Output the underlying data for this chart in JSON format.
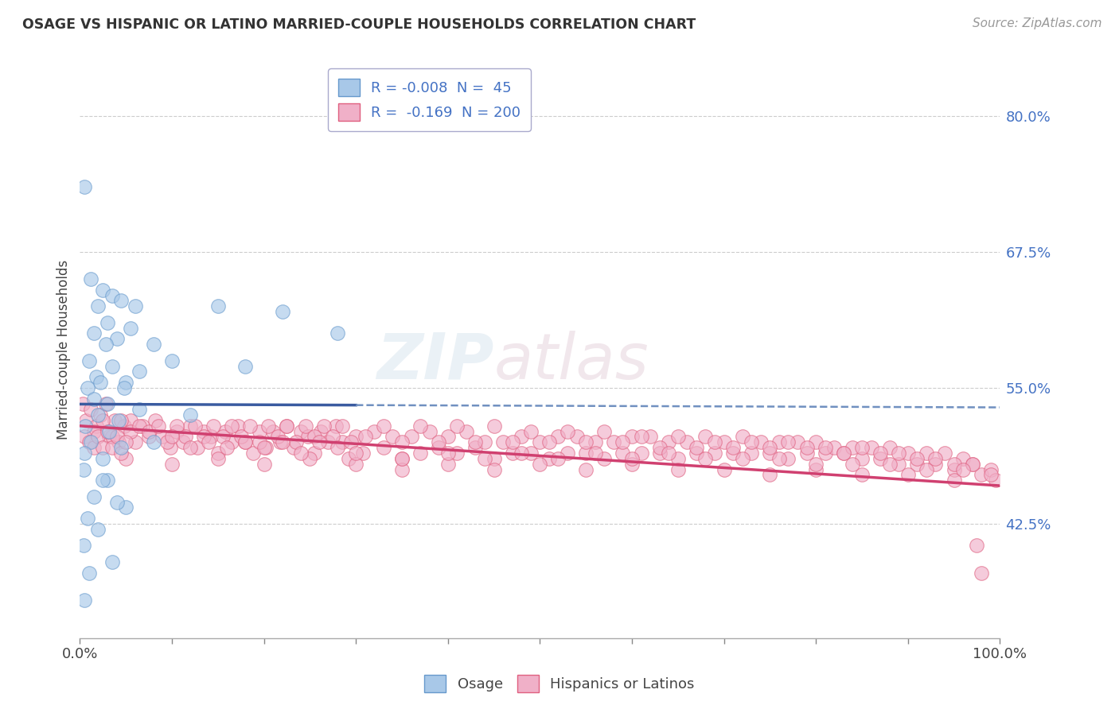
{
  "title": "OSAGE VS HISPANIC OR LATINO MARRIED-COUPLE HOUSEHOLDS CORRELATION CHART",
  "source": "Source: ZipAtlas.com",
  "ylabel": "Married-couple Households",
  "xlim": [
    0,
    100
  ],
  "ylim": [
    32,
    85
  ],
  "yticks": [
    42.5,
    55.0,
    67.5,
    80.0
  ],
  "xticks": [
    0,
    10,
    20,
    30,
    40,
    50,
    60,
    70,
    80,
    90,
    100
  ],
  "watermark_zip": "ZIP",
  "watermark_atlas": "atlas",
  "osage_color": "#a8c8e8",
  "osage_edge": "#6699cc",
  "hispanic_color": "#f0b0c8",
  "hispanic_edge": "#e06080",
  "blue_trend_color": "#3a5ba0",
  "pink_trend_color": "#d04070",
  "dashed_color": "#7090c0",
  "background_color": "#ffffff",
  "grid_color": "#c0c0c0",
  "right_label_color": "#4472c4",
  "blue_solid_end": 30,
  "blue_trend_start_y": 53.5,
  "blue_trend_end_y": 53.2,
  "pink_trend_start_y": 51.5,
  "pink_trend_end_y": 46.0,
  "osage_points": [
    [
      0.5,
      73.5
    ],
    [
      1.2,
      65.0
    ],
    [
      2.5,
      64.0
    ],
    [
      3.5,
      63.5
    ],
    [
      2.0,
      62.5
    ],
    [
      4.5,
      63.0
    ],
    [
      6.0,
      62.5
    ],
    [
      15.0,
      62.5
    ],
    [
      22.0,
      62.0
    ],
    [
      3.0,
      61.0
    ],
    [
      5.5,
      60.5
    ],
    [
      1.5,
      60.0
    ],
    [
      4.0,
      59.5
    ],
    [
      2.8,
      59.0
    ],
    [
      8.0,
      59.0
    ],
    [
      28.0,
      60.0
    ],
    [
      1.0,
      57.5
    ],
    [
      3.5,
      57.0
    ],
    [
      6.5,
      56.5
    ],
    [
      18.0,
      57.0
    ],
    [
      10.0,
      57.5
    ],
    [
      1.8,
      56.0
    ],
    [
      2.2,
      55.5
    ],
    [
      5.0,
      55.5
    ],
    [
      0.8,
      55.0
    ],
    [
      4.8,
      55.0
    ],
    [
      1.5,
      54.0
    ],
    [
      3.0,
      53.5
    ],
    [
      2.0,
      52.5
    ],
    [
      4.2,
      52.0
    ],
    [
      0.6,
      51.5
    ],
    [
      3.2,
      51.0
    ],
    [
      6.5,
      53.0
    ],
    [
      12.0,
      52.5
    ],
    [
      1.2,
      50.0
    ],
    [
      4.5,
      49.5
    ],
    [
      0.5,
      49.0
    ],
    [
      2.5,
      48.5
    ],
    [
      8.0,
      50.0
    ],
    [
      0.4,
      47.5
    ],
    [
      3.0,
      46.5
    ],
    [
      1.5,
      45.0
    ],
    [
      5.0,
      44.0
    ],
    [
      0.8,
      43.0
    ],
    [
      2.0,
      42.0
    ],
    [
      0.4,
      40.5
    ],
    [
      3.5,
      39.0
    ],
    [
      1.0,
      38.0
    ],
    [
      2.5,
      46.5
    ],
    [
      4.0,
      44.5
    ],
    [
      0.5,
      35.5
    ]
  ],
  "hispanic_points": [
    [
      0.3,
      53.5
    ],
    [
      0.7,
      52.0
    ],
    [
      1.2,
      53.0
    ],
    [
      1.8,
      51.5
    ],
    [
      2.2,
      52.5
    ],
    [
      2.8,
      53.5
    ],
    [
      3.2,
      50.5
    ],
    [
      3.8,
      52.0
    ],
    [
      4.2,
      50.0
    ],
    [
      4.8,
      51.5
    ],
    [
      5.5,
      52.0
    ],
    [
      6.0,
      50.0
    ],
    [
      6.8,
      51.5
    ],
    [
      7.5,
      50.5
    ],
    [
      8.2,
      52.0
    ],
    [
      9.0,
      50.5
    ],
    [
      9.8,
      49.5
    ],
    [
      10.5,
      51.0
    ],
    [
      11.2,
      50.0
    ],
    [
      12.0,
      51.5
    ],
    [
      12.8,
      49.5
    ],
    [
      13.5,
      51.0
    ],
    [
      14.2,
      50.5
    ],
    [
      15.0,
      49.0
    ],
    [
      15.8,
      51.0
    ],
    [
      16.5,
      50.0
    ],
    [
      17.2,
      51.5
    ],
    [
      18.0,
      50.0
    ],
    [
      18.8,
      49.0
    ],
    [
      19.5,
      51.0
    ],
    [
      20.2,
      49.5
    ],
    [
      21.0,
      51.0
    ],
    [
      21.8,
      50.0
    ],
    [
      22.5,
      51.5
    ],
    [
      23.2,
      49.5
    ],
    [
      24.0,
      51.0
    ],
    [
      24.8,
      50.5
    ],
    [
      25.5,
      49.0
    ],
    [
      26.2,
      51.0
    ],
    [
      27.0,
      50.0
    ],
    [
      27.8,
      51.5
    ],
    [
      28.5,
      50.0
    ],
    [
      29.2,
      48.5
    ],
    [
      30.0,
      50.5
    ],
    [
      30.8,
      49.0
    ],
    [
      32.0,
      51.0
    ],
    [
      33.0,
      49.5
    ],
    [
      34.0,
      50.5
    ],
    [
      35.0,
      48.5
    ],
    [
      36.0,
      50.5
    ],
    [
      37.0,
      49.0
    ],
    [
      38.0,
      51.0
    ],
    [
      39.0,
      49.5
    ],
    [
      40.0,
      50.5
    ],
    [
      41.0,
      49.0
    ],
    [
      42.0,
      51.0
    ],
    [
      43.0,
      49.5
    ],
    [
      44.0,
      50.0
    ],
    [
      45.0,
      48.5
    ],
    [
      46.0,
      50.0
    ],
    [
      47.0,
      49.0
    ],
    [
      48.0,
      50.5
    ],
    [
      49.0,
      49.0
    ],
    [
      50.0,
      50.0
    ],
    [
      51.0,
      48.5
    ],
    [
      52.0,
      50.5
    ],
    [
      53.0,
      49.0
    ],
    [
      54.0,
      50.5
    ],
    [
      55.0,
      49.0
    ],
    [
      56.0,
      50.0
    ],
    [
      57.0,
      48.5
    ],
    [
      58.0,
      50.0
    ],
    [
      59.0,
      49.0
    ],
    [
      60.0,
      50.5
    ],
    [
      61.0,
      49.0
    ],
    [
      62.0,
      50.5
    ],
    [
      63.0,
      49.0
    ],
    [
      64.0,
      50.0
    ],
    [
      65.0,
      48.5
    ],
    [
      66.0,
      50.0
    ],
    [
      67.0,
      49.0
    ],
    [
      68.0,
      50.5
    ],
    [
      69.0,
      49.0
    ],
    [
      70.0,
      50.0
    ],
    [
      71.0,
      49.0
    ],
    [
      72.0,
      50.5
    ],
    [
      73.0,
      49.0
    ],
    [
      74.0,
      50.0
    ],
    [
      75.0,
      49.0
    ],
    [
      76.0,
      50.0
    ],
    [
      77.0,
      48.5
    ],
    [
      78.0,
      50.0
    ],
    [
      79.0,
      49.0
    ],
    [
      80.0,
      50.0
    ],
    [
      81.0,
      49.0
    ],
    [
      82.0,
      49.5
    ],
    [
      83.0,
      49.0
    ],
    [
      84.0,
      49.5
    ],
    [
      85.0,
      48.5
    ],
    [
      86.0,
      49.5
    ],
    [
      87.0,
      48.5
    ],
    [
      88.0,
      49.5
    ],
    [
      89.0,
      48.0
    ],
    [
      90.0,
      49.0
    ],
    [
      91.0,
      48.0
    ],
    [
      92.0,
      49.0
    ],
    [
      93.0,
      48.0
    ],
    [
      94.0,
      49.0
    ],
    [
      95.0,
      47.5
    ],
    [
      96.0,
      48.5
    ],
    [
      97.0,
      48.0
    ],
    [
      98.0,
      47.0
    ],
    [
      99.0,
      47.5
    ],
    [
      99.5,
      46.5
    ],
    [
      1.5,
      51.0
    ],
    [
      2.5,
      52.0
    ],
    [
      3.5,
      50.5
    ],
    [
      4.5,
      52.0
    ],
    [
      5.5,
      51.0
    ],
    [
      6.5,
      51.5
    ],
    [
      7.5,
      51.0
    ],
    [
      8.5,
      51.5
    ],
    [
      9.5,
      50.0
    ],
    [
      10.5,
      51.5
    ],
    [
      11.5,
      50.5
    ],
    [
      12.5,
      51.5
    ],
    [
      13.5,
      50.5
    ],
    [
      14.5,
      51.5
    ],
    [
      15.5,
      50.5
    ],
    [
      16.5,
      51.5
    ],
    [
      17.5,
      50.5
    ],
    [
      18.5,
      51.5
    ],
    [
      19.5,
      50.0
    ],
    [
      20.5,
      51.5
    ],
    [
      21.5,
      50.5
    ],
    [
      22.5,
      51.5
    ],
    [
      23.5,
      50.0
    ],
    [
      24.5,
      51.5
    ],
    [
      25.5,
      50.5
    ],
    [
      26.5,
      51.5
    ],
    [
      27.5,
      50.5
    ],
    [
      28.5,
      51.5
    ],
    [
      29.5,
      50.0
    ],
    [
      31.0,
      50.5
    ],
    [
      33.0,
      51.5
    ],
    [
      35.0,
      50.0
    ],
    [
      37.0,
      51.5
    ],
    [
      39.0,
      50.0
    ],
    [
      41.0,
      51.5
    ],
    [
      43.0,
      50.0
    ],
    [
      45.0,
      51.5
    ],
    [
      47.0,
      50.0
    ],
    [
      49.0,
      51.0
    ],
    [
      51.0,
      50.0
    ],
    [
      53.0,
      51.0
    ],
    [
      55.0,
      50.0
    ],
    [
      57.0,
      51.0
    ],
    [
      59.0,
      50.0
    ],
    [
      61.0,
      50.5
    ],
    [
      63.0,
      49.5
    ],
    [
      65.0,
      50.5
    ],
    [
      67.0,
      49.5
    ],
    [
      69.0,
      50.0
    ],
    [
      71.0,
      49.5
    ],
    [
      73.0,
      50.0
    ],
    [
      75.0,
      49.5
    ],
    [
      77.0,
      50.0
    ],
    [
      79.0,
      49.5
    ],
    [
      81.0,
      49.5
    ],
    [
      83.0,
      49.0
    ],
    [
      85.0,
      49.5
    ],
    [
      87.0,
      49.0
    ],
    [
      89.0,
      49.0
    ],
    [
      91.0,
      48.5
    ],
    [
      93.0,
      48.5
    ],
    [
      95.0,
      48.0
    ],
    [
      97.0,
      48.0
    ],
    [
      99.0,
      47.0
    ],
    [
      5.0,
      48.5
    ],
    [
      10.0,
      48.0
    ],
    [
      15.0,
      48.5
    ],
    [
      20.0,
      48.0
    ],
    [
      25.0,
      48.5
    ],
    [
      30.0,
      48.0
    ],
    [
      35.0,
      47.5
    ],
    [
      40.0,
      48.0
    ],
    [
      45.0,
      47.5
    ],
    [
      50.0,
      48.0
    ],
    [
      55.0,
      47.5
    ],
    [
      60.0,
      48.0
    ],
    [
      65.0,
      47.5
    ],
    [
      70.0,
      47.5
    ],
    [
      75.0,
      47.0
    ],
    [
      80.0,
      47.5
    ],
    [
      85.0,
      47.0
    ],
    [
      90.0,
      47.0
    ],
    [
      95.0,
      46.5
    ],
    [
      98.0,
      38.0
    ],
    [
      97.5,
      40.5
    ],
    [
      0.5,
      50.5
    ],
    [
      1.0,
      50.0
    ],
    [
      1.5,
      49.5
    ],
    [
      2.0,
      50.5
    ],
    [
      2.5,
      49.5
    ],
    [
      3.0,
      51.0
    ],
    [
      3.5,
      49.5
    ],
    [
      4.0,
      50.5
    ],
    [
      4.5,
      49.0
    ],
    [
      5.0,
      50.0
    ],
    [
      10.0,
      50.5
    ],
    [
      12.0,
      49.5
    ],
    [
      14.0,
      50.0
    ],
    [
      16.0,
      49.5
    ],
    [
      18.0,
      50.0
    ],
    [
      20.0,
      49.5
    ],
    [
      22.0,
      50.0
    ],
    [
      24.0,
      49.0
    ],
    [
      26.0,
      50.0
    ],
    [
      28.0,
      49.5
    ],
    [
      30.0,
      49.0
    ],
    [
      35.0,
      48.5
    ],
    [
      40.0,
      49.0
    ],
    [
      44.0,
      48.5
    ],
    [
      48.0,
      49.0
    ],
    [
      52.0,
      48.5
    ],
    [
      56.0,
      49.0
    ],
    [
      60.0,
      48.5
    ],
    [
      64.0,
      49.0
    ],
    [
      68.0,
      48.5
    ],
    [
      72.0,
      48.5
    ],
    [
      76.0,
      48.5
    ],
    [
      80.0,
      48.0
    ],
    [
      84.0,
      48.0
    ],
    [
      88.0,
      48.0
    ],
    [
      92.0,
      47.5
    ],
    [
      96.0,
      47.5
    ]
  ]
}
